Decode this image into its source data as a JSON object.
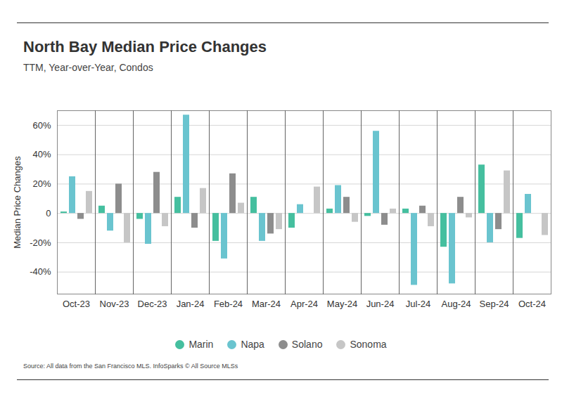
{
  "chart_data": {
    "type": "bar",
    "title": "North Bay Median Price Changes",
    "subtitle": "TTM, Year-over-Year, Condos",
    "y_label": "Median Price Changes",
    "caption": "Source:  All data from the San Francisco MLS. InfoSparks © All Source MLSs",
    "categories": [
      "Oct-23",
      "Nov-23",
      "Dec-23",
      "Jan-24",
      "Feb-24",
      "Mar-24",
      "Apr-24",
      "May-24",
      "Jun-24",
      "Jul-24",
      "Aug-24",
      "Sep-24",
      "Oct-24"
    ],
    "series": [
      {
        "name": "Marin",
        "color": "#45bf9f",
        "values": [
          1,
          5,
          -4,
          11,
          -19,
          11,
          -10,
          3,
          -2,
          3,
          -23,
          33,
          -17
        ]
      },
      {
        "name": "Napa",
        "color": "#6ac4cf",
        "values": [
          25,
          -12,
          -21,
          67,
          -31,
          -19,
          6,
          19,
          56,
          -49,
          -48,
          -20,
          13
        ]
      },
      {
        "name": "Solano",
        "color": "#8d8d8d",
        "values": [
          -4,
          20,
          28,
          -10,
          27,
          -14,
          0,
          11,
          -8,
          5,
          11,
          -11,
          0
        ]
      },
      {
        "name": "Sonoma",
        "color": "#c6c6c6",
        "values": [
          15,
          -20,
          -9,
          17,
          7,
          -11,
          18,
          -6,
          3,
          -9,
          -3,
          29,
          -15
        ]
      }
    ],
    "ylim": [
      -55,
      70
    ],
    "yticks": [
      {
        "value": -40,
        "label": "-40%"
      },
      {
        "value": -20,
        "label": "-20%"
      },
      0,
      {
        "value": 20,
        "label": "20%"
      },
      {
        "value": 40,
        "label": "40%"
      },
      {
        "value": 60,
        "label": "60%"
      }
    ],
    "grid": true,
    "legend": "bottom"
  }
}
